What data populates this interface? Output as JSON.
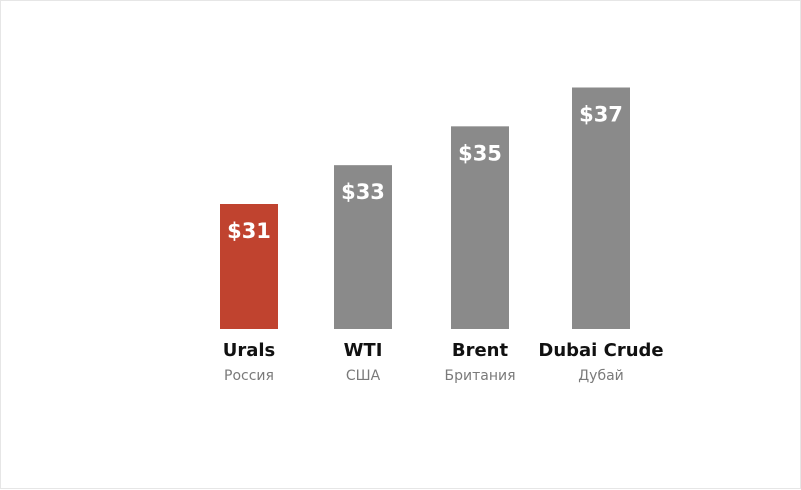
{
  "chart_data": {
    "type": "bar",
    "categories": [
      "Urals",
      "WTI",
      "Brent",
      "Dubai Crude"
    ],
    "subtitles": [
      "Россия",
      "США",
      "Британия",
      "Дубай"
    ],
    "values": [
      31,
      33,
      35,
      37
    ],
    "value_labels": [
      "$31",
      "$33",
      "$35",
      "$37"
    ],
    "highlight_index": 0,
    "colors": {
      "highlight": "#c0432f",
      "default": "#8a8a8a"
    },
    "grid": false,
    "legend": "none"
  }
}
